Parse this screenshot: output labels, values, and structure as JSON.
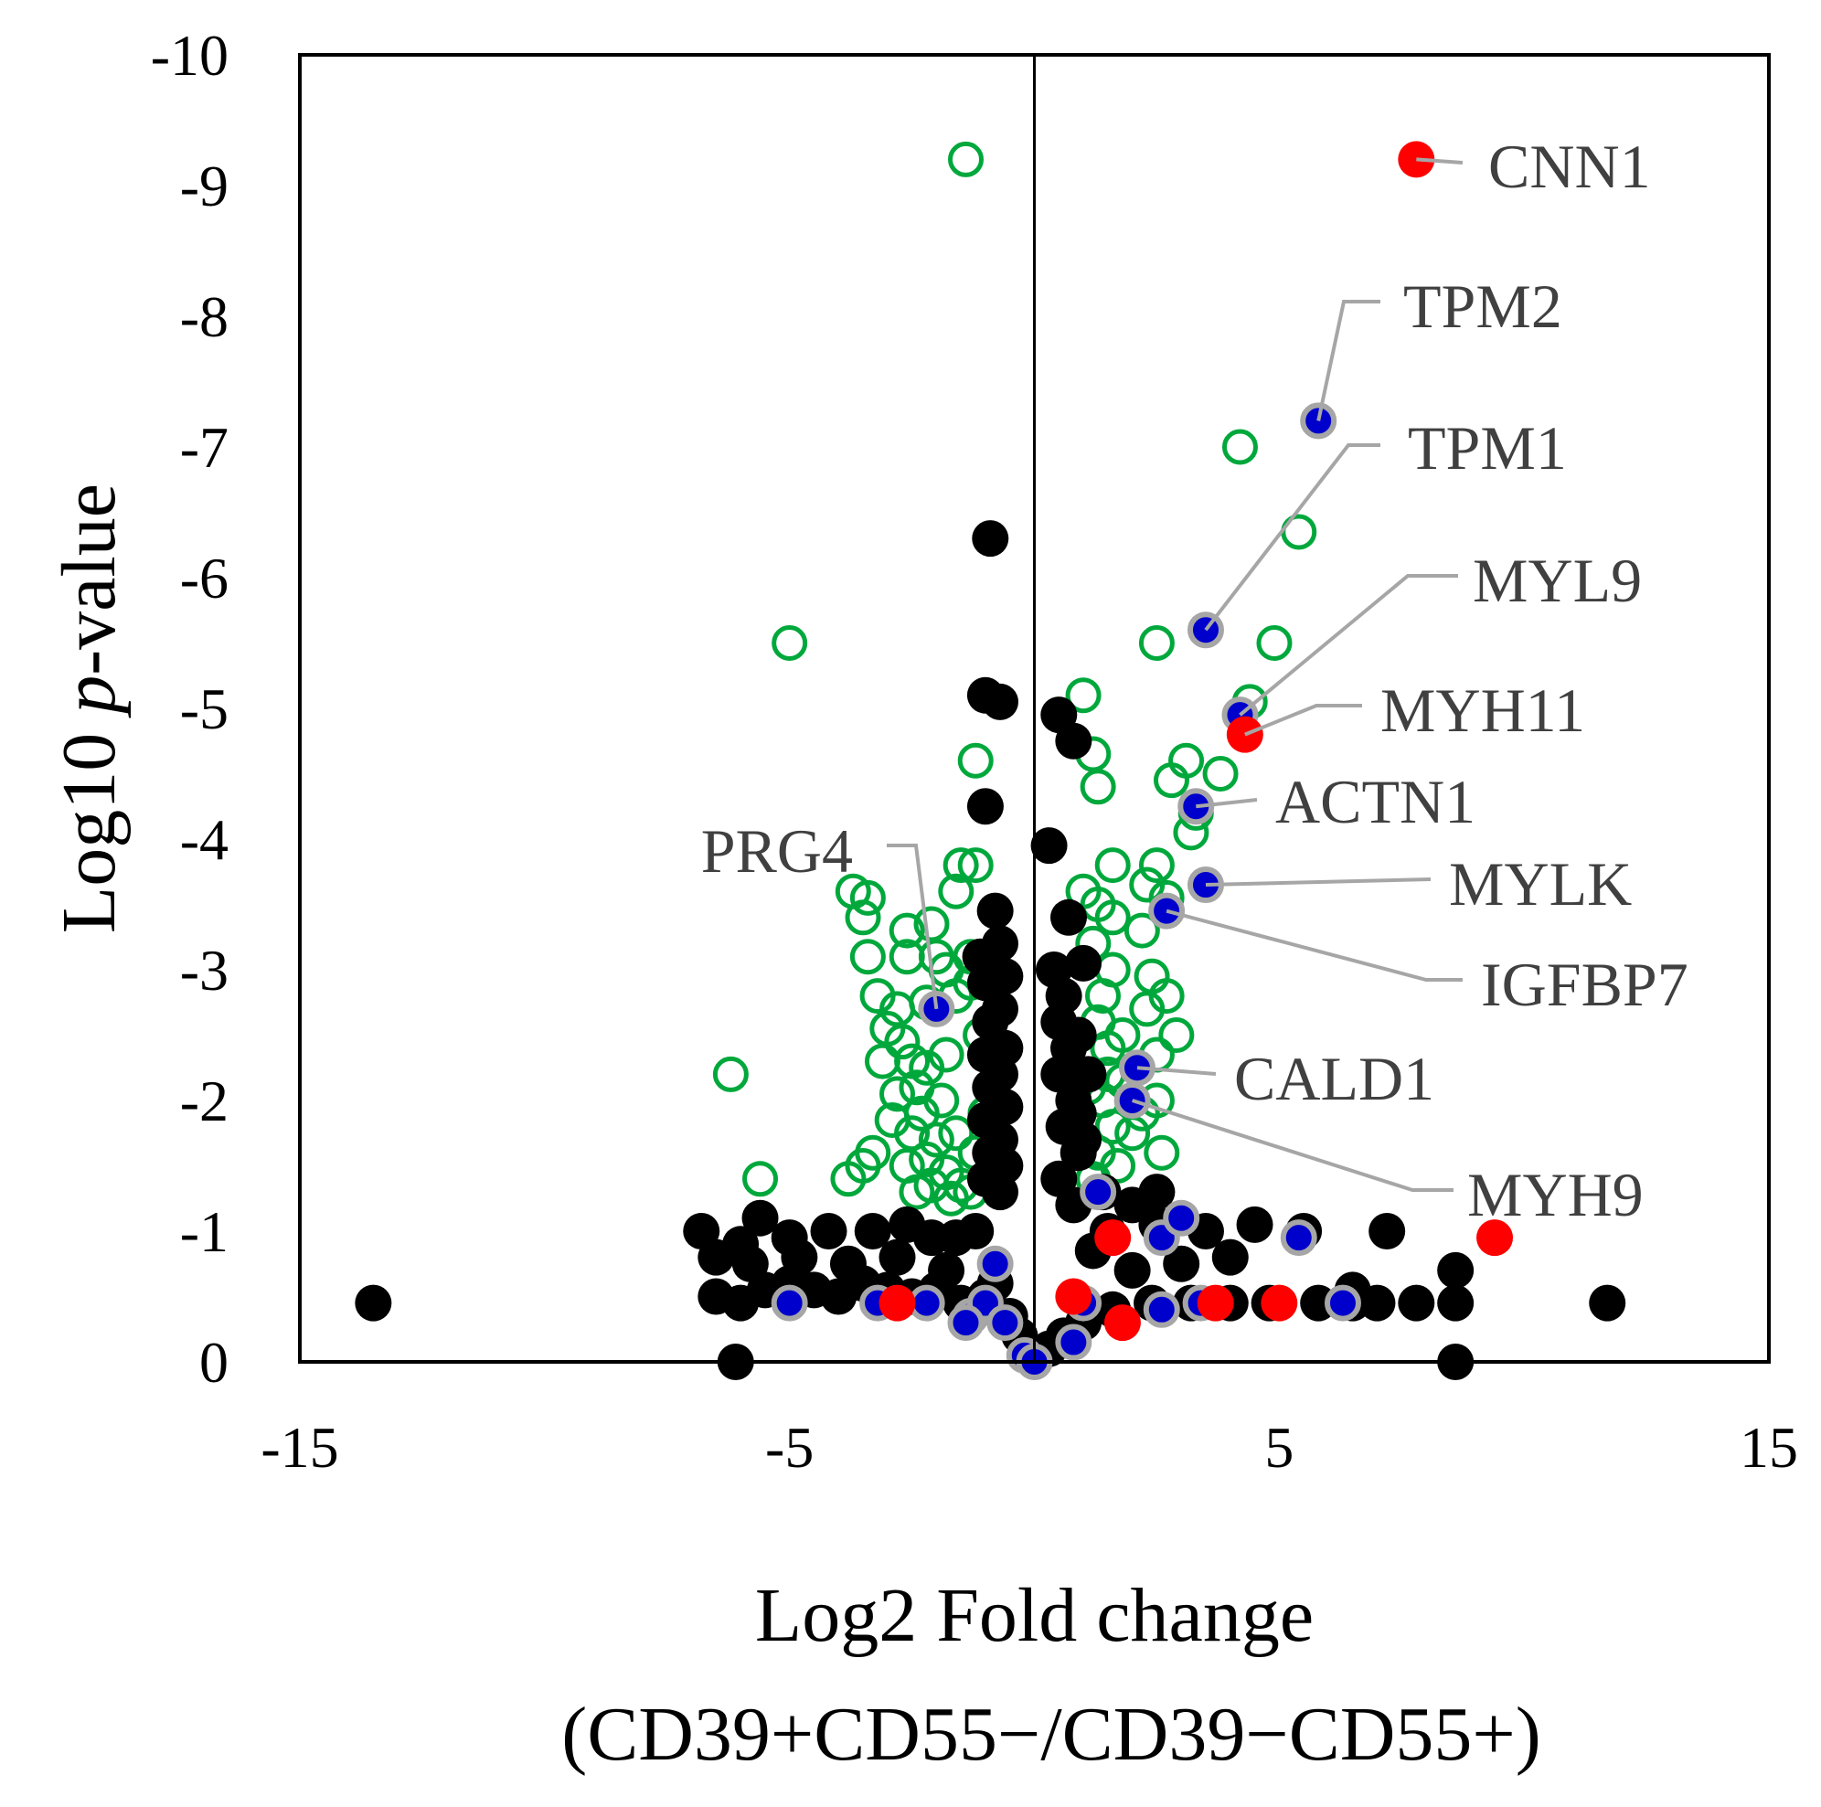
{
  "chart_data": {
    "type": "scatter",
    "xlabel_line1": "Log2 Fold change",
    "xlabel_line2": "(CD39+CD55−/CD39−CD55+)",
    "ylabel_prefix": "Log10 ",
    "ylabel_italic": "p",
    "ylabel_suffix": "-value",
    "xlim": [
      -15,
      15
    ],
    "ylim": [
      0,
      -10
    ],
    "x_ticks": [
      {
        "value": -15,
        "label": "-15"
      },
      {
        "value": -5,
        "label": "-5"
      },
      {
        "value": 5,
        "label": "5"
      },
      {
        "value": 15,
        "label": "15"
      }
    ],
    "y_ticks": [
      {
        "value": 0,
        "label": "0"
      },
      {
        "value": -1,
        "label": "-1"
      },
      {
        "value": -2,
        "label": "-2"
      },
      {
        "value": -3,
        "label": "-3"
      },
      {
        "value": -4,
        "label": "-4"
      },
      {
        "value": -5,
        "label": "-5"
      },
      {
        "value": -6,
        "label": "-6"
      },
      {
        "value": -7,
        "label": "-7"
      },
      {
        "value": -8,
        "label": "-8"
      },
      {
        "value": -9,
        "label": "-9"
      },
      {
        "value": -10,
        "label": "-10"
      }
    ],
    "grid": false,
    "reference_line_x": 0,
    "colors": {
      "significant_outline": "#00a83c",
      "not_significant": "#000000",
      "highlight_blue": "#0000cc",
      "highlight_red": "#ff0000",
      "highlight_ring": "#a6a6a6",
      "label_text": "#404040"
    },
    "series": [
      {
        "style": "open-green",
        "points": [
          [
            -1.4,
            -9.2
          ],
          [
            -5,
            -5.5
          ],
          [
            -6.2,
            -2.2
          ],
          [
            -5.6,
            -1.4
          ],
          [
            -1.2,
            -4.6
          ],
          [
            -1.5,
            -3.8
          ],
          [
            -1.2,
            -3.8
          ],
          [
            -1.6,
            -3.6
          ],
          [
            -3.7,
            -3.6
          ],
          [
            -3.4,
            -3.55
          ],
          [
            -3.5,
            -3.4
          ],
          [
            -2.6,
            -3.3
          ],
          [
            -2.1,
            -3.35
          ],
          [
            -2.0,
            -3.1
          ],
          [
            -2.6,
            -3.1
          ],
          [
            -1.8,
            -3.0
          ],
          [
            -1.3,
            -3.1
          ],
          [
            -3.4,
            -3.1
          ],
          [
            -3.2,
            -2.8
          ],
          [
            -2.8,
            -2.7
          ],
          [
            -2.2,
            -2.75
          ],
          [
            -1.6,
            -2.8
          ],
          [
            -3.0,
            -2.55
          ],
          [
            -2.7,
            -2.45
          ],
          [
            -3.1,
            -2.3
          ],
          [
            -2.5,
            -2.3
          ],
          [
            -2.2,
            -2.25
          ],
          [
            -1.8,
            -2.35
          ],
          [
            -2.4,
            -2.1
          ],
          [
            -2.8,
            -2.05
          ],
          [
            -1.9,
            -2.0
          ],
          [
            -2.3,
            -1.9
          ],
          [
            -2.9,
            -1.85
          ],
          [
            -2.5,
            -1.75
          ],
          [
            -2.0,
            -1.7
          ],
          [
            -1.6,
            -1.75
          ],
          [
            -2.2,
            -1.55
          ],
          [
            -2.6,
            -1.5
          ],
          [
            -1.8,
            -1.45
          ],
          [
            -2.1,
            -1.35
          ],
          [
            -1.5,
            -1.35
          ],
          [
            -3.3,
            -1.6
          ],
          [
            -3.5,
            -1.5
          ],
          [
            -3.8,
            -1.4
          ],
          [
            -1.3,
            -1.3
          ],
          [
            -1.7,
            -1.25
          ],
          [
            -2.4,
            -1.3
          ],
          [
            -1.2,
            -1.6
          ],
          [
            -1.0,
            -1.9
          ],
          [
            -1.1,
            -2.5
          ],
          [
            -1.3,
            -2.9
          ],
          [
            4.2,
            -7.0
          ],
          [
            5.4,
            -6.35
          ],
          [
            4.9,
            -5.5
          ],
          [
            2.5,
            -5.5
          ],
          [
            4.4,
            -5.05
          ],
          [
            1.0,
            -5.1
          ],
          [
            1.2,
            -4.65
          ],
          [
            1.3,
            -4.4
          ],
          [
            3.1,
            -4.6
          ],
          [
            2.8,
            -4.45
          ],
          [
            3.8,
            -4.5
          ],
          [
            3.3,
            -4.2
          ],
          [
            3.2,
            -4.05
          ],
          [
            1.6,
            -3.8
          ],
          [
            2.5,
            -3.8
          ],
          [
            1.0,
            -3.6
          ],
          [
            2.3,
            -3.65
          ],
          [
            2.7,
            -3.55
          ],
          [
            1.3,
            -3.5
          ],
          [
            1.6,
            -3.4
          ],
          [
            2.2,
            -3.3
          ],
          [
            1.2,
            -3.2
          ],
          [
            1.6,
            -3.0
          ],
          [
            1.4,
            -2.8
          ],
          [
            2.4,
            -2.95
          ],
          [
            2.7,
            -2.8
          ],
          [
            2.3,
            -2.7
          ],
          [
            1.3,
            -2.6
          ],
          [
            1.8,
            -2.5
          ],
          [
            2.9,
            -2.5
          ],
          [
            1.5,
            -2.4
          ],
          [
            2.5,
            -2.35
          ],
          [
            1.8,
            -2.15
          ],
          [
            1.4,
            -2.0
          ],
          [
            2.2,
            -1.9
          ],
          [
            1.6,
            -1.8
          ],
          [
            2.0,
            -1.75
          ],
          [
            1.3,
            -1.6
          ],
          [
            1.7,
            -1.5
          ],
          [
            1.2,
            -1.4
          ],
          [
            2.5,
            -2.0
          ],
          [
            2.6,
            -1.6
          ],
          [
            1.5,
            -2.2
          ],
          [
            1.1,
            -2.1
          ]
        ]
      },
      {
        "style": "filled-black",
        "points": [
          [
            -0.9,
            -6.3
          ],
          [
            -1.0,
            -5.1
          ],
          [
            -0.7,
            -5.05
          ],
          [
            0.5,
            -4.95
          ],
          [
            0.8,
            -4.75
          ],
          [
            -1.0,
            -4.25
          ],
          [
            0.3,
            -3.95
          ],
          [
            -0.8,
            -3.45
          ],
          [
            0.7,
            -3.4
          ],
          [
            -1.1,
            -3.1
          ],
          [
            -1.0,
            -2.9
          ],
          [
            -0.9,
            -2.6
          ],
          [
            -1.0,
            -2.35
          ],
          [
            -0.9,
            -2.1
          ],
          [
            -1.0,
            -1.85
          ],
          [
            -0.9,
            -1.6
          ],
          [
            -1.0,
            -1.4
          ],
          [
            -0.7,
            -3.2
          ],
          [
            -0.6,
            -2.95
          ],
          [
            -0.7,
            -2.7
          ],
          [
            -0.6,
            -2.4
          ],
          [
            -0.7,
            -2.2
          ],
          [
            -0.6,
            -1.95
          ],
          [
            -0.7,
            -1.7
          ],
          [
            -0.6,
            -1.5
          ],
          [
            -0.7,
            -1.3
          ],
          [
            0.4,
            -3.0
          ],
          [
            0.6,
            -2.8
          ],
          [
            0.5,
            -2.6
          ],
          [
            0.7,
            -2.4
          ],
          [
            0.5,
            -2.2
          ],
          [
            0.8,
            -2.0
          ],
          [
            0.6,
            -1.8
          ],
          [
            0.9,
            -1.6
          ],
          [
            0.5,
            -1.4
          ],
          [
            0.8,
            -1.2
          ],
          [
            1.0,
            -3.05
          ],
          [
            0.9,
            -2.5
          ],
          [
            1.1,
            -2.2
          ],
          [
            0.9,
            -1.9
          ],
          [
            1.0,
            -1.7
          ],
          [
            -13.5,
            -0.45
          ],
          [
            -6.1,
            0.0
          ],
          [
            -6.8,
            -1.0
          ],
          [
            -6.5,
            -0.8
          ],
          [
            -6.0,
            -0.9
          ],
          [
            -5.6,
            -1.1
          ],
          [
            -5.0,
            -0.95
          ],
          [
            -4.2,
            -1.0
          ],
          [
            -3.3,
            -1.0
          ],
          [
            -2.6,
            -1.05
          ],
          [
            -2.1,
            -0.95
          ],
          [
            -1.6,
            -0.95
          ],
          [
            -1.2,
            -1.0
          ],
          [
            -6.5,
            -0.5
          ],
          [
            -6.0,
            -0.45
          ],
          [
            -5.5,
            -0.55
          ],
          [
            -5.0,
            -0.6
          ],
          [
            -4.5,
            -0.55
          ],
          [
            -4.0,
            -0.5
          ],
          [
            -3.5,
            -0.6
          ],
          [
            -3.0,
            -0.55
          ],
          [
            -2.5,
            -0.5
          ],
          [
            -2.0,
            -0.55
          ],
          [
            -1.5,
            -0.45
          ],
          [
            -1.0,
            -0.5
          ],
          [
            -5.8,
            -0.75
          ],
          [
            -4.8,
            -0.8
          ],
          [
            -3.8,
            -0.75
          ],
          [
            -2.8,
            -0.8
          ],
          [
            -1.8,
            -0.7
          ],
          [
            -0.8,
            -0.6
          ],
          [
            -0.5,
            -0.35
          ],
          [
            -0.3,
            -0.2
          ],
          [
            -1.3,
            -0.35
          ],
          [
            1.5,
            -1.0
          ],
          [
            2.5,
            -1.05
          ],
          [
            3.5,
            -1.0
          ],
          [
            4.5,
            -1.05
          ],
          [
            5.5,
            -1.0
          ],
          [
            7.2,
            -1.0
          ],
          [
            8.6,
            -0.7
          ],
          [
            8.6,
            -0.45
          ],
          [
            8.6,
            0.0
          ],
          [
            11.7,
            -0.45
          ],
          [
            7.8,
            -0.45
          ],
          [
            7.0,
            -0.45
          ],
          [
            6.5,
            -0.45
          ],
          [
            5.8,
            -0.45
          ],
          [
            4.8,
            -0.45
          ],
          [
            4.0,
            -0.45
          ],
          [
            3.2,
            -0.45
          ],
          [
            2.4,
            -0.45
          ],
          [
            1.6,
            -0.4
          ],
          [
            1.0,
            -0.3
          ],
          [
            0.6,
            -0.2
          ],
          [
            0.3,
            -0.1
          ],
          [
            2.0,
            -0.7
          ],
          [
            3.0,
            -0.75
          ],
          [
            4.0,
            -0.8
          ],
          [
            1.2,
            -0.85
          ],
          [
            2.5,
            -1.3
          ],
          [
            2.0,
            -1.2
          ],
          [
            1.4,
            -1.3
          ],
          [
            6.5,
            -0.55
          ]
        ]
      },
      {
        "style": "blue-ringed",
        "points": [
          [
            5.8,
            -7.2
          ],
          [
            3.5,
            -5.6
          ],
          [
            4.2,
            -4.95
          ],
          [
            3.3,
            -4.25
          ],
          [
            3.5,
            -3.65
          ],
          [
            2.7,
            -3.45
          ],
          [
            2.1,
            -2.25
          ],
          [
            2.0,
            -2.0
          ],
          [
            -2.0,
            -2.7
          ],
          [
            1.3,
            -1.3
          ],
          [
            2.6,
            -0.95
          ],
          [
            3.0,
            -1.1
          ],
          [
            5.4,
            -0.95
          ],
          [
            -5.0,
            -0.45
          ],
          [
            -3.2,
            -0.45
          ],
          [
            -2.2,
            -0.45
          ],
          [
            -1.3,
            -0.35
          ],
          [
            -1.0,
            -0.45
          ],
          [
            -0.8,
            -0.75
          ],
          [
            -0.6,
            -0.3
          ],
          [
            -0.2,
            -0.05
          ],
          [
            0.0,
            0.0
          ],
          [
            0.8,
            -0.15
          ],
          [
            1.0,
            -0.45
          ],
          [
            2.6,
            -0.4
          ],
          [
            3.4,
            -0.45
          ],
          [
            6.3,
            -0.45
          ],
          [
            -1.4,
            -0.3
          ]
        ]
      },
      {
        "style": "red",
        "points": [
          [
            7.8,
            -9.2
          ],
          [
            4.3,
            -4.8
          ],
          [
            1.6,
            -0.95
          ],
          [
            9.4,
            -0.95
          ],
          [
            -2.8,
            -0.45
          ],
          [
            0.8,
            -0.5
          ],
          [
            1.8,
            -0.3
          ],
          [
            3.7,
            -0.45
          ],
          [
            5.0,
            -0.45
          ]
        ]
      }
    ],
    "annotations": [
      {
        "gene": "CNN1",
        "x": 7.8,
        "y": -9.2
      },
      {
        "gene": "TPM2",
        "x": 5.8,
        "y": -7.2
      },
      {
        "gene": "TPM1",
        "x": 3.5,
        "y": -5.6
      },
      {
        "gene": "MYL9",
        "x": 4.2,
        "y": -4.95
      },
      {
        "gene": "MYH11",
        "x": 4.3,
        "y": -4.8
      },
      {
        "gene": "ACTN1",
        "x": 3.3,
        "y": -4.25
      },
      {
        "gene": "PRG4",
        "x": -2.0,
        "y": -2.7
      },
      {
        "gene": "MYLK",
        "x": 3.5,
        "y": -3.65
      },
      {
        "gene": "IGFBP7",
        "x": 2.7,
        "y": -3.45
      },
      {
        "gene": "CALD1",
        "x": 2.1,
        "y": -2.25
      },
      {
        "gene": "MYH9",
        "x": 2.0,
        "y": -2.0
      }
    ]
  }
}
